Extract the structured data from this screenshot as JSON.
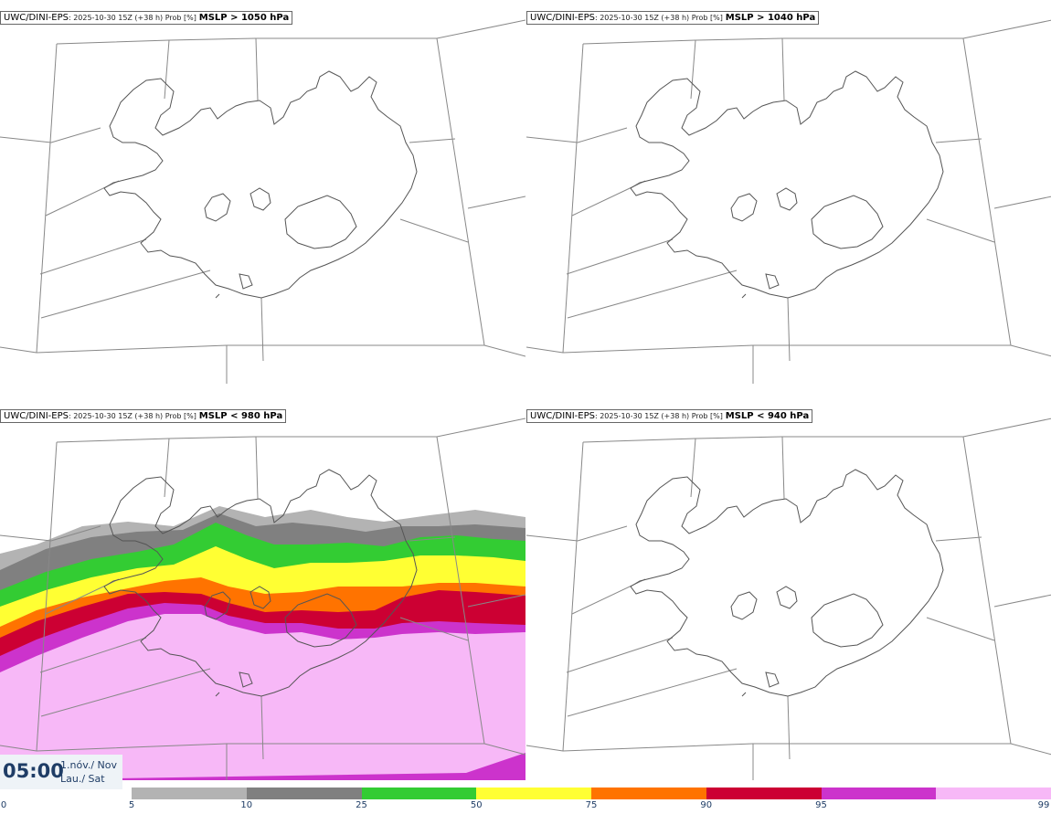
{
  "panels": [
    {
      "model": "UWC/DINI-EPS",
      "meta": ": 2025-10-30 15Z (+38 h) Prob [%]",
      "threshold": "MSLP > 1050 hPa"
    },
    {
      "model": "UWC/DINI-EPS",
      "meta": ": 2025-10-30 15Z (+38 h) Prob [%]",
      "threshold": "MSLP > 1040 hPa"
    },
    {
      "model": "UWC/DINI-EPS",
      "meta": ": 2025-10-30 15Z (+38 h) Prob [%]",
      "threshold": "MSLP < 980 hPa"
    },
    {
      "model": "UWC/DINI-EPS",
      "meta": ": 2025-10-30 15Z (+38 h) Prob [%]",
      "threshold": "MSLP < 940 hPa"
    }
  ],
  "timestamp": {
    "time": "05:00",
    "date_line1": "1.nóv./ Nov",
    "date_line2": "Lau./ Sat"
  },
  "colorbar": {
    "ticks": [
      "0",
      "5",
      "10",
      "25",
      "50",
      "75",
      "90",
      "95",
      "99"
    ],
    "colors": [
      "#b3b3b3",
      "#808080",
      "#33cc33",
      "#ffff33",
      "#ff7300",
      "#cc0033",
      "#cc33cc",
      "#f7b8f7"
    ]
  }
}
